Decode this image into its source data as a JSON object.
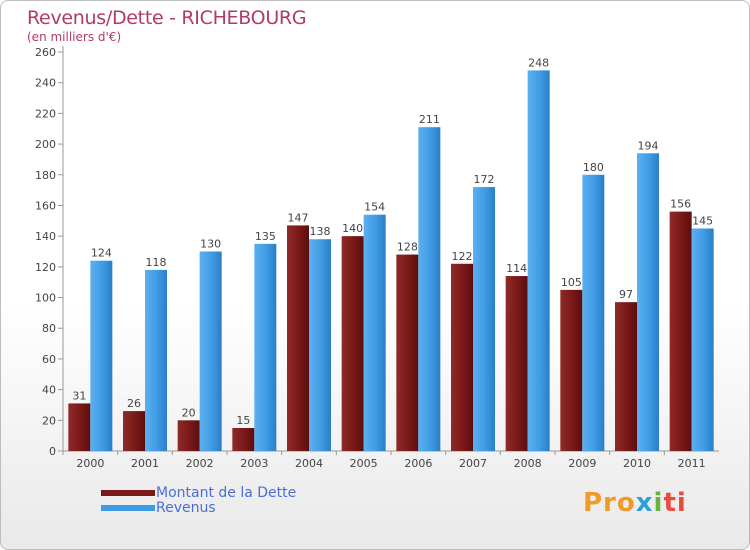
{
  "header": {
    "title": "Revenus/Dette - RICHEBOURG",
    "subtitle": "(en milliers d'€)"
  },
  "colors": {
    "dette": "#7a1818",
    "revenus": "#3f9be3",
    "title": "#b13a6a",
    "legend_text": "#4a6ed8"
  },
  "chart_data": {
    "type": "bar",
    "title": "Revenus/Dette - RICHEBOURG",
    "ylabel": "(en milliers d'€)",
    "xlabel": "",
    "ylim": [
      0,
      260
    ],
    "yticks": [
      0,
      20,
      40,
      60,
      80,
      100,
      120,
      140,
      160,
      180,
      200,
      220,
      240,
      260
    ],
    "grid": false,
    "categories": [
      "2000",
      "2001",
      "2002",
      "2003",
      "2004",
      "2005",
      "2006",
      "2007",
      "2008",
      "2009",
      "2010",
      "2011"
    ],
    "series": [
      {
        "name": "Montant de la Dette",
        "values": [
          31,
          26,
          20,
          15,
          147,
          140,
          128,
          122,
          114,
          105,
          97,
          156
        ]
      },
      {
        "name": "Revenus",
        "values": [
          124,
          118,
          130,
          135,
          138,
          154,
          211,
          172,
          248,
          180,
          194,
          145
        ]
      }
    ],
    "legend_position": "bottom-left"
  },
  "logo": {
    "text": "Proxiti",
    "parts": [
      "Pro",
      "x",
      "i",
      "ti"
    ]
  }
}
